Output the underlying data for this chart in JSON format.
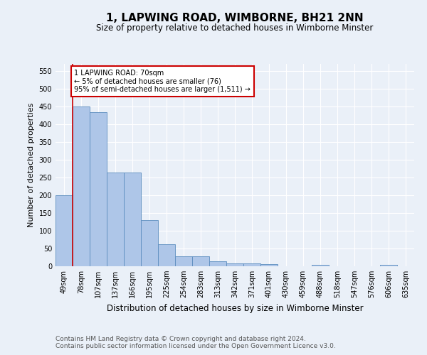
{
  "title": "1, LAPWING ROAD, WIMBORNE, BH21 2NN",
  "subtitle": "Size of property relative to detached houses in Wimborne Minster",
  "xlabel": "Distribution of detached houses by size in Wimborne Minster",
  "ylabel": "Number of detached properties",
  "footer_line1": "Contains HM Land Registry data © Crown copyright and database right 2024.",
  "footer_line2": "Contains public sector information licensed under the Open Government Licence v3.0.",
  "categories": [
    "49sqm",
    "78sqm",
    "107sqm",
    "137sqm",
    "166sqm",
    "195sqm",
    "225sqm",
    "254sqm",
    "283sqm",
    "313sqm",
    "342sqm",
    "371sqm",
    "401sqm",
    "430sqm",
    "459sqm",
    "488sqm",
    "518sqm",
    "547sqm",
    "576sqm",
    "606sqm",
    "635sqm"
  ],
  "values": [
    200,
    450,
    435,
    265,
    265,
    130,
    62,
    28,
    28,
    15,
    9,
    9,
    7,
    0,
    0,
    5,
    0,
    0,
    0,
    5,
    0
  ],
  "bar_color": "#aec6e8",
  "bar_edge_color": "#5b8dbe",
  "marker_color": "#cc0000",
  "annotation_text": "1 LAPWING ROAD: 70sqm\n← 5% of detached houses are smaller (76)\n95% of semi-detached houses are larger (1,511) →",
  "annotation_box_color": "#ffffff",
  "annotation_box_edge_color": "#cc0000",
  "ylim": [
    0,
    570
  ],
  "yticks": [
    0,
    50,
    100,
    150,
    200,
    250,
    300,
    350,
    400,
    450,
    500,
    550
  ],
  "background_color": "#eaf0f8",
  "plot_background_color": "#eaf0f8",
  "title_fontsize": 11,
  "subtitle_fontsize": 8.5,
  "ylabel_fontsize": 8,
  "xlabel_fontsize": 8.5,
  "tick_fontsize": 7,
  "footer_fontsize": 6.5,
  "grid_color": "#ffffff",
  "annotation_fontsize": 7
}
